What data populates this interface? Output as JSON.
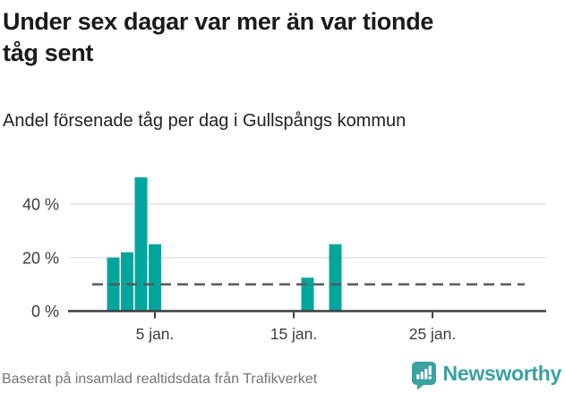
{
  "header": {
    "title_lines": [
      "Under sex dagar var mer än var tionde",
      "tåg sent"
    ],
    "subtitle": "Andel försenade tåg per dag i Gullspångs kommun"
  },
  "chart_data": {
    "type": "bar",
    "title": "Under sex dagar var mer än var tionde tåg sent",
    "subtitle": "Andel försenade tåg per dag i Gullspångs kommun",
    "x_unit": "dag i januari",
    "x": [
      2,
      3,
      4,
      5,
      16,
      18
    ],
    "values": [
      20,
      22,
      50,
      25,
      12.5,
      25
    ],
    "series_name": "Andel försenade tåg (%)",
    "xticks": [
      {
        "value": 5,
        "label": "5 jan."
      },
      {
        "value": 15,
        "label": "15 jan."
      },
      {
        "value": 25,
        "label": "25 jan."
      }
    ],
    "yticks": [
      {
        "value": 0,
        "label": "0 %"
      },
      {
        "value": 20,
        "label": "20 %"
      },
      {
        "value": 40,
        "label": "40 %"
      }
    ],
    "xlim": [
      0.5,
      31.5
    ],
    "ylim": [
      0,
      55
    ],
    "grid": "horizontal",
    "legend": "none",
    "reference_line": {
      "value": 10,
      "style": "dashed"
    },
    "colors": {
      "bar": "#00a69c",
      "axis": "#3d3d3d",
      "grid": "#e3e3e3",
      "reference": "#595959",
      "tick_text": "#3d3d3d"
    }
  },
  "footer": {
    "source": "Baserat på insamlad realtidsdata från Trafikverket",
    "brand": "Newsworthy"
  },
  "brand_colors": {
    "logo": "#3ba1a1"
  }
}
